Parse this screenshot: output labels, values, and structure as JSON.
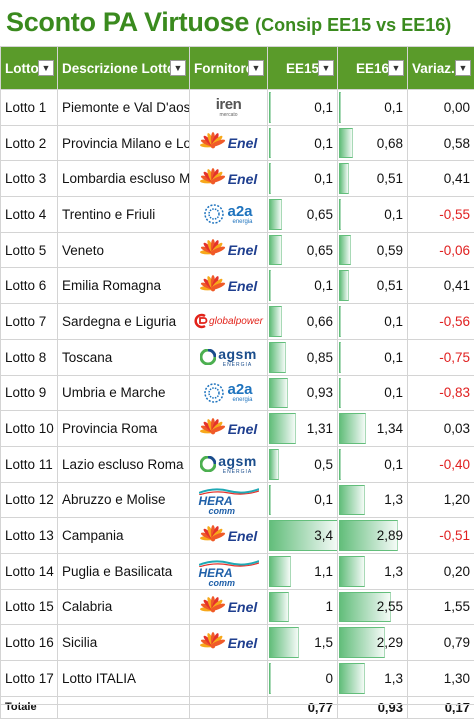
{
  "title": {
    "main": "Sconto PA Virtuose",
    "sub": "(Consip EE15 vs EE16)"
  },
  "headers": {
    "lotto": "Lotto",
    "descrizione": "Descrizione Lotto",
    "fornitore": "Fornitore",
    "ee15": "EE15",
    "ee16": "EE16",
    "variaz": "Variaz.",
    "filter_symbol": "▼"
  },
  "databar_max": 3.4,
  "colors": {
    "title": "#3a8a1e",
    "header_bg": "#5a9b2a",
    "negative": "#e02020",
    "databar": "#63be7b"
  },
  "logos": {
    "enel": "Enel",
    "iren": "iren",
    "iren_sub": "mercato",
    "a2a": "a2a",
    "a2a_sub": "energia",
    "agsm": "agsm",
    "agsm_sub": "ENERGIA",
    "hera": "HERA",
    "hera_sub": "comm",
    "globalpower": "globalpower"
  },
  "rows": [
    {
      "lotto": "Lotto 1",
      "descrizione": "Piemonte e Val D'aosta",
      "fornitore": "iren",
      "ee15": "0,1",
      "ee16": "0,1",
      "variaz": "0,00",
      "ee15_n": 0.1,
      "ee16_n": 0.1,
      "neg": false
    },
    {
      "lotto": "Lotto 2",
      "descrizione": "Provincia Milano e Lodi",
      "fornitore": "enel",
      "ee15": "0,1",
      "ee16": "0,68",
      "variaz": "0,58",
      "ee15_n": 0.1,
      "ee16_n": 0.68,
      "neg": false
    },
    {
      "lotto": "Lotto 3",
      "descrizione": "Lombardia escluso Mi",
      "fornitore": "enel",
      "ee15": "0,1",
      "ee16": "0,51",
      "variaz": "0,41",
      "ee15_n": 0.1,
      "ee16_n": 0.51,
      "neg": false
    },
    {
      "lotto": "Lotto 4",
      "descrizione": "Trentino e Friuli",
      "fornitore": "a2a",
      "ee15": "0,65",
      "ee16": "0,1",
      "variaz": "-0,55",
      "ee15_n": 0.65,
      "ee16_n": 0.1,
      "neg": true
    },
    {
      "lotto": "Lotto 5",
      "descrizione": "Veneto",
      "fornitore": "enel",
      "ee15": "0,65",
      "ee16": "0,59",
      "variaz": "-0,06",
      "ee15_n": 0.65,
      "ee16_n": 0.59,
      "neg": true
    },
    {
      "lotto": "Lotto 6",
      "descrizione": "Emilia Romagna",
      "fornitore": "enel",
      "ee15": "0,1",
      "ee16": "0,51",
      "variaz": "0,41",
      "ee15_n": 0.1,
      "ee16_n": 0.51,
      "neg": false
    },
    {
      "lotto": "Lotto 7",
      "descrizione": "Sardegna e Liguria",
      "fornitore": "globalpower",
      "ee15": "0,66",
      "ee16": "0,1",
      "variaz": "-0,56",
      "ee15_n": 0.66,
      "ee16_n": 0.1,
      "neg": true
    },
    {
      "lotto": "Lotto 8",
      "descrizione": "Toscana",
      "fornitore": "agsm",
      "ee15": "0,85",
      "ee16": "0,1",
      "variaz": "-0,75",
      "ee15_n": 0.85,
      "ee16_n": 0.1,
      "neg": true
    },
    {
      "lotto": "Lotto 9",
      "descrizione": "Umbria e Marche",
      "fornitore": "a2a",
      "ee15": "0,93",
      "ee16": "0,1",
      "variaz": "-0,83",
      "ee15_n": 0.93,
      "ee16_n": 0.1,
      "neg": true
    },
    {
      "lotto": "Lotto 10",
      "descrizione": "Provincia Roma",
      "fornitore": "enel",
      "ee15": "1,31",
      "ee16": "1,34",
      "variaz": "0,03",
      "ee15_n": 1.31,
      "ee16_n": 1.34,
      "neg": false
    },
    {
      "lotto": "Lotto 11",
      "descrizione": "Lazio escluso Roma",
      "fornitore": "agsm",
      "ee15": "0,5",
      "ee16": "0,1",
      "variaz": "-0,40",
      "ee15_n": 0.5,
      "ee16_n": 0.1,
      "neg": true
    },
    {
      "lotto": "Lotto 12",
      "descrizione": "Abruzzo e Molise",
      "fornitore": "hera",
      "ee15": "0,1",
      "ee16": "1,3",
      "variaz": "1,20",
      "ee15_n": 0.1,
      "ee16_n": 1.3,
      "neg": false
    },
    {
      "lotto": "Lotto 13",
      "descrizione": "Campania",
      "fornitore": "enel",
      "ee15": "3,4",
      "ee16": "2,89",
      "variaz": "-0,51",
      "ee15_n": 3.4,
      "ee16_n": 2.89,
      "neg": true
    },
    {
      "lotto": "Lotto 14",
      "descrizione": "Puglia e Basilicata",
      "fornitore": "hera",
      "ee15": "1,1",
      "ee16": "1,3",
      "variaz": "0,20",
      "ee15_n": 1.1,
      "ee16_n": 1.3,
      "neg": false
    },
    {
      "lotto": "Lotto 15",
      "descrizione": "Calabria",
      "fornitore": "enel",
      "ee15": "1",
      "ee16": "2,55",
      "variaz": "1,55",
      "ee15_n": 1,
      "ee16_n": 2.55,
      "neg": false
    },
    {
      "lotto": "Lotto 16",
      "descrizione": "Sicilia",
      "fornitore": "enel",
      "ee15": "1,5",
      "ee16": "2,29",
      "variaz": "0,79",
      "ee15_n": 1.5,
      "ee16_n": 2.29,
      "neg": false
    },
    {
      "lotto": "Lotto 17",
      "descrizione": "Lotto ITALIA",
      "fornitore": "",
      "ee15": "0",
      "ee16": "1,3",
      "variaz": "1,30",
      "ee15_n": 0,
      "ee16_n": 1.3,
      "neg": false
    }
  ],
  "total": {
    "label": "Totale",
    "ee15": "0,77",
    "ee16": "0,93",
    "variaz": "0,17"
  }
}
